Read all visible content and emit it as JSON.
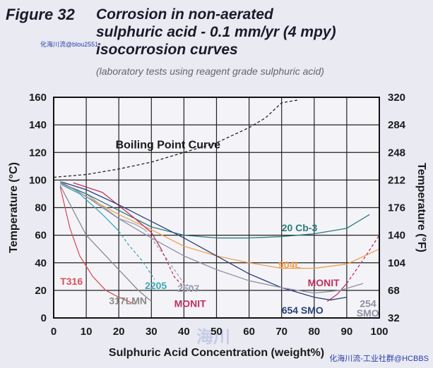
{
  "figure": {
    "number": "Figure 32",
    "title_lines": [
      "Corrosion in non-aerated",
      "sulphuric acid - 0.1 mm/yr (4 mpy)",
      "isocorrosion curves"
    ],
    "subtitle": "(laboratory tests using reagent grade sulphuric acid)"
  },
  "watermarks": {
    "top": "化海川流@blou2551",
    "center": "海川",
    "bottom": "化海川流-工业社群@HCBBS"
  },
  "chart_data": {
    "type": "line",
    "xlabel": "Sulphuric Acid Concentration (weight%)",
    "ylabel": "Temperature (°C)",
    "ylabel_right": "Temperature (°F)",
    "xlim": [
      0,
      100
    ],
    "ylim": [
      0,
      160
    ],
    "x_ticks": [
      "0",
      "10",
      "20",
      "30",
      "40",
      "50",
      "60",
      "70",
      "80",
      "90",
      "100"
    ],
    "y_ticks": [
      "0",
      "20",
      "40",
      "60",
      "80",
      "100",
      "120",
      "140",
      "160"
    ],
    "y_ticks_right": [
      "32",
      "68",
      "104",
      "140",
      "176",
      "212",
      "248",
      "284",
      "320"
    ],
    "grid": true,
    "series": [
      {
        "name": "Boiling Point Curve",
        "color": "#222222",
        "dash": "4,3",
        "x": [
          0,
          10,
          20,
          30,
          40,
          50,
          60,
          65,
          70,
          75
        ],
        "y": [
          102,
          104,
          108,
          113,
          120,
          127,
          138,
          145,
          156,
          158
        ]
      },
      {
        "name": "T316",
        "color": "#d8505a",
        "dash": "",
        "x": [
          2,
          5,
          8,
          12,
          16,
          20,
          25
        ],
        "y": [
          95,
          65,
          45,
          30,
          20,
          15,
          10
        ]
      },
      {
        "name": "2205",
        "color": "#3aa8b8",
        "dash": "",
        "x": [
          2,
          8,
          15,
          20
        ],
        "y": [
          97,
          90,
          75,
          63
        ]
      },
      {
        "name": "2205 (dashed)",
        "color": "#3aa8b8",
        "dash": "4,3",
        "x": [
          20,
          23,
          27,
          31
        ],
        "y": [
          63,
          53,
          42,
          28
        ]
      },
      {
        "name": "317LMN",
        "color": "#8a8a8a",
        "dash": "",
        "x": [
          2,
          10,
          20,
          26,
          30
        ],
        "y": [
          96,
          60,
          35,
          20,
          12
        ]
      },
      {
        "name": "2507",
        "color": "#9ca0b6",
        "dash": "",
        "x": [
          2,
          10,
          20,
          25,
          28
        ],
        "y": [
          97,
          90,
          72,
          68,
          64
        ]
      },
      {
        "name": "2507 (dashed)",
        "color": "#9ca0b6",
        "dash": "4,3",
        "x": [
          28,
          35,
          40,
          45
        ],
        "y": [
          64,
          42,
          25,
          20
        ]
      },
      {
        "name": "20 Cb-3",
        "color": "#2a7a7a",
        "dash": "",
        "x": [
          2,
          10,
          20,
          30,
          40,
          50,
          60,
          70,
          80,
          90,
          97
        ],
        "y": [
          98,
          90,
          78,
          66,
          60,
          58,
          58,
          59,
          61,
          65,
          75
        ]
      },
      {
        "name": "904L",
        "color": "#f0a050",
        "dash": "",
        "x": [
          2,
          10,
          20,
          30,
          40,
          50,
          60,
          70,
          80,
          90,
          100
        ],
        "y": [
          99,
          88,
          75,
          64,
          52,
          45,
          40,
          36,
          36,
          39,
          50
        ]
      },
      {
        "name": "MONIT",
        "color": "#c0305a",
        "dash": "",
        "x": [
          6,
          15,
          25,
          30,
          33
        ],
        "y": [
          98,
          91,
          72,
          62,
          50
        ]
      },
      {
        "name": "MONIT (dashed)",
        "color": "#c0305a",
        "dash": "4,3",
        "x": [
          33,
          37,
          40
        ],
        "y": [
          50,
          30,
          22
        ]
      },
      {
        "name": "MONIT (right)",
        "color": "#c0305a",
        "dash": "",
        "x": [
          84,
          87,
          90
        ],
        "y": [
          12,
          17,
          25
        ]
      },
      {
        "name": "MONIT (right, dashed)",
        "color": "#c0305a",
        "dash": "4,3",
        "x": [
          90,
          95,
          100
        ],
        "y": [
          25,
          42,
          60
        ]
      },
      {
        "name": "654 SMO",
        "color": "#2a3f7a",
        "dash": "",
        "x": [
          2,
          10,
          20,
          30,
          40,
          50,
          60,
          70,
          80,
          85,
          90
        ],
        "y": [
          99,
          93,
          82,
          70,
          58,
          45,
          32,
          22,
          15,
          13,
          15
        ]
      },
      {
        "name": "254 SMO",
        "color": "#8f8fa6",
        "dash": "",
        "x": [
          2,
          10,
          20,
          30,
          40,
          50,
          60,
          70,
          80,
          88,
          95
        ],
        "y": [
          99,
          88,
          72,
          58,
          45,
          35,
          27,
          22,
          18,
          20,
          25
        ]
      }
    ],
    "labels": [
      {
        "text": "Boiling Point Curve",
        "x": 19,
        "y": 123,
        "color": "#1a1a1a"
      },
      {
        "text": "T316",
        "x": 2,
        "y": 24,
        "color": "#d8505a"
      },
      {
        "text": "2205",
        "x": 28,
        "y": 21,
        "color": "#3aa8b8"
      },
      {
        "text": "2507",
        "x": 38,
        "y": 19,
        "color": "#9ca0b6"
      },
      {
        "text": "317LMN",
        "x": 17,
        "y": 10,
        "color": "#8a8a8a"
      },
      {
        "text": "MONIT",
        "x": 37,
        "y": 8,
        "color": "#c0305a"
      },
      {
        "text": "20 Cb-3",
        "x": 70,
        "y": 63,
        "color": "#2a7a7a"
      },
      {
        "text": "904L",
        "x": 69,
        "y": 36,
        "color": "#f0a050"
      },
      {
        "text": "MONIT",
        "x": 78,
        "y": 23,
        "color": "#c0305a"
      },
      {
        "text": "654 SMO",
        "x": 70,
        "y": 3,
        "color": "#2a3f7a"
      },
      {
        "text": "254",
        "x": 94,
        "y": 8,
        "color": "#8f8fa6"
      },
      {
        "text": "SMO",
        "x": 93,
        "y": 1,
        "color": "#8f8fa6"
      }
    ]
  }
}
